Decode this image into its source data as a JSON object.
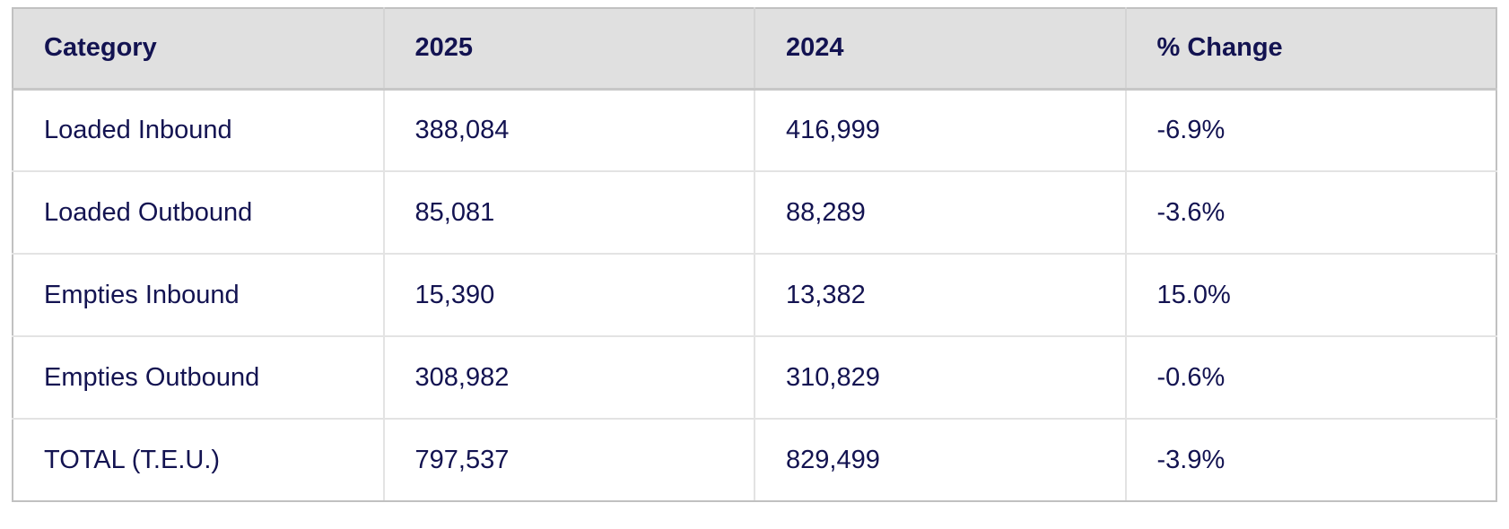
{
  "colors": {
    "text_navy": "#131351",
    "header_background": "#e0e0e0",
    "outer_border": "#c1c1c1",
    "inner_divider": "#e3e3e3",
    "page_background": "#ffffff"
  },
  "chart_data": {
    "type": "table",
    "title": "",
    "columns": [
      "Category",
      "2025",
      "2024",
      "% Change"
    ],
    "rows": [
      [
        "Loaded Inbound",
        "388,084",
        "416,999",
        "-6.9%"
      ],
      [
        "Loaded Outbound",
        "85,081",
        "88,289",
        "-3.6%"
      ],
      [
        "Empties Inbound",
        "15,390",
        "13,382",
        "15.0%"
      ],
      [
        "Empties Outbound",
        "308,982",
        "310,829",
        "-0.6%"
      ],
      [
        "TOTAL (T.E.U.)",
        "797,537",
        "829,499",
        "-3.9%"
      ]
    ],
    "numeric_values": {
      "y2025": [
        388084,
        85081,
        15390,
        308982,
        797537
      ],
      "y2024": [
        416999,
        88289,
        13382,
        310829,
        829499
      ],
      "pct_change": [
        -6.9,
        -3.6,
        15.0,
        -0.6,
        -3.9
      ]
    },
    "layout_hints": {
      "header_style": "bold, light-gray background",
      "grid": "light gray cell borders",
      "alignment": "left"
    }
  }
}
